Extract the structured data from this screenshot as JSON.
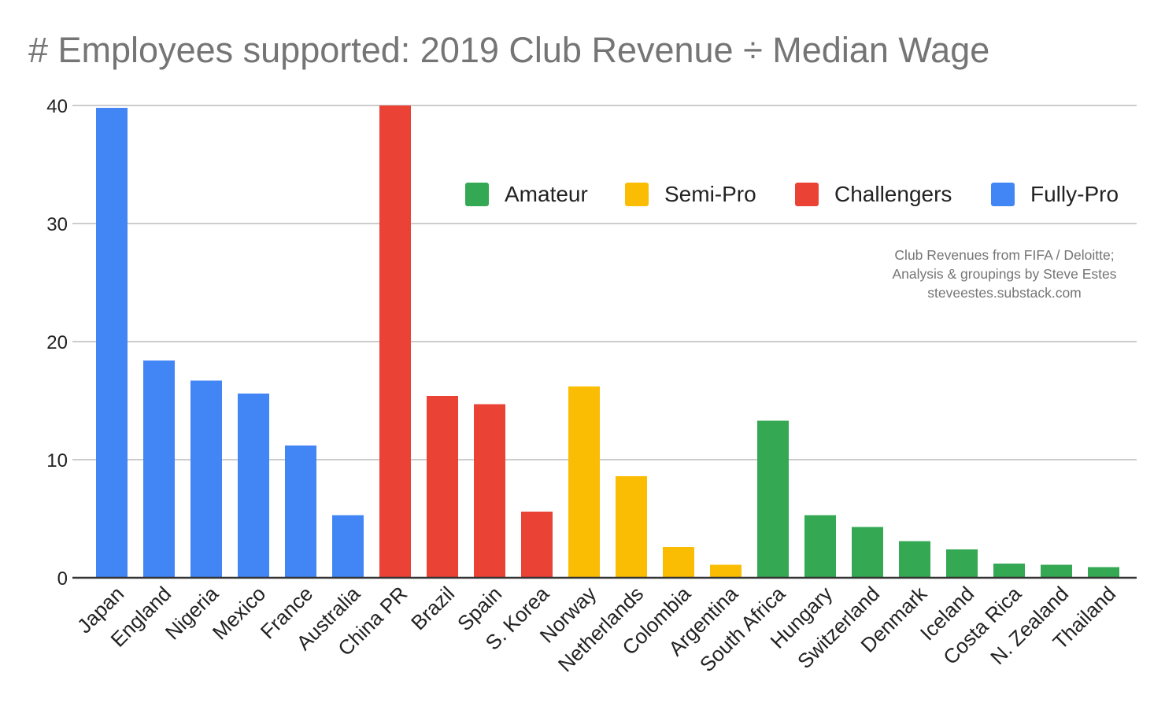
{
  "chart_data": {
    "type": "bar",
    "title": "# Employees supported: 2019 Club Revenue ÷ Median Wage",
    "xlabel": "",
    "ylabel": "",
    "ylim": [
      0,
      40
    ],
    "yticks": [
      0,
      10,
      20,
      30,
      40
    ],
    "grid": true,
    "legend_position": "top-right",
    "legend": [
      {
        "name": "Amateur",
        "color": "#34a853"
      },
      {
        "name": "Semi-Pro",
        "color": "#fbbc04"
      },
      {
        "name": "Challengers",
        "color": "#ea4335"
      },
      {
        "name": "Fully-Pro",
        "color": "#4285f4"
      }
    ],
    "categories": [
      "Japan",
      "England",
      "Nigeria",
      "Mexico",
      "France",
      "Australia",
      "China PR",
      "Brazil",
      "Spain",
      "S. Korea",
      "Norway",
      "Netherlands",
      "Colombia",
      "Argentina",
      "South Africa",
      "Hungary",
      "Switzerland",
      "Denmark",
      "Iceland",
      "Costa Rica",
      "N. Zealand",
      "Thailand"
    ],
    "values": [
      39.8,
      18.4,
      16.7,
      15.6,
      11.2,
      5.3,
      40.0,
      15.4,
      14.7,
      5.6,
      16.2,
      8.6,
      2.6,
      1.1,
      13.3,
      5.3,
      4.3,
      3.1,
      2.4,
      1.2,
      1.1,
      0.9
    ],
    "groups": [
      "Fully-Pro",
      "Fully-Pro",
      "Fully-Pro",
      "Fully-Pro",
      "Fully-Pro",
      "Fully-Pro",
      "Challengers",
      "Challengers",
      "Challengers",
      "Challengers",
      "Semi-Pro",
      "Semi-Pro",
      "Semi-Pro",
      "Semi-Pro",
      "Amateur",
      "Amateur",
      "Amateur",
      "Amateur",
      "Amateur",
      "Amateur",
      "Amateur",
      "Amateur"
    ],
    "annotations": [
      "Club Revenues from FIFA / Deloitte;",
      "Analysis & groupings by Steve Estes",
      "steveestes.substack.com"
    ]
  }
}
